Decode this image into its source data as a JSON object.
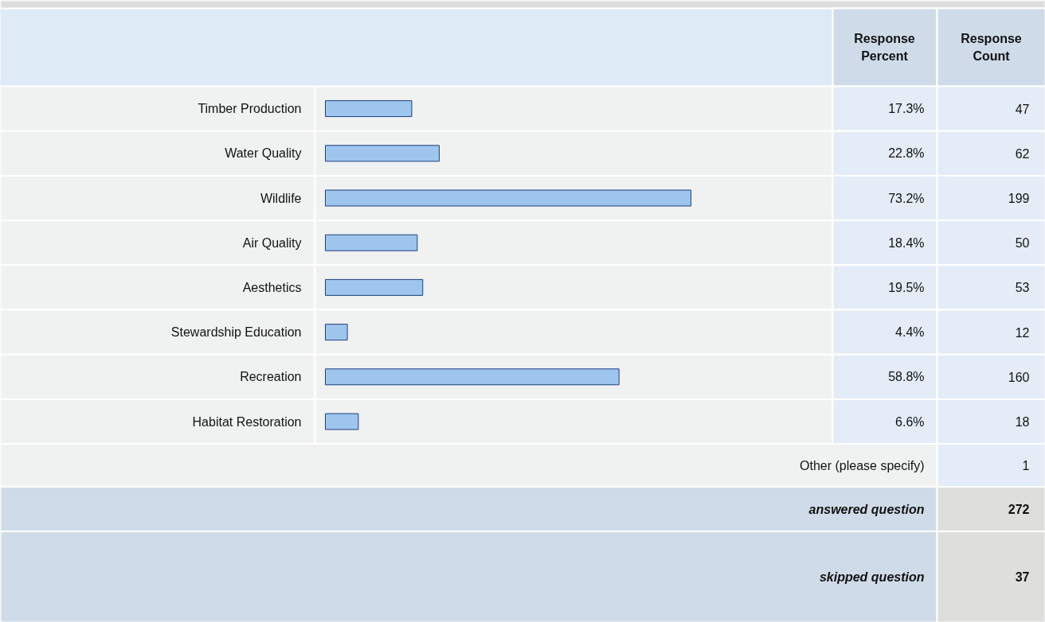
{
  "chart_data": {
    "type": "bar",
    "orientation": "horizontal",
    "categories": [
      "Timber Production",
      "Water Quality",
      "Wildlife",
      "Air Quality",
      "Aesthetics",
      "Stewardship Education",
      "Recreation",
      "Habitat Restoration"
    ],
    "values": [
      17.3,
      22.8,
      73.2,
      18.4,
      19.5,
      4.4,
      58.8,
      6.6
    ],
    "value_labels": [
      "17.3%",
      "22.8%",
      "73.2%",
      "18.4%",
      "19.5%",
      "4.4%",
      "58.8%",
      "6.6%"
    ],
    "color": "#9ec5ee",
    "tick_labels": "y",
    "annotations": [
      "Response Percent",
      "Response Count",
      "47",
      "62",
      "199",
      "50",
      "53",
      "12",
      "160",
      "18",
      "Other (please specify)",
      "1",
      "answered question",
      "272",
      "skipped question",
      "37"
    ]
  }
}
